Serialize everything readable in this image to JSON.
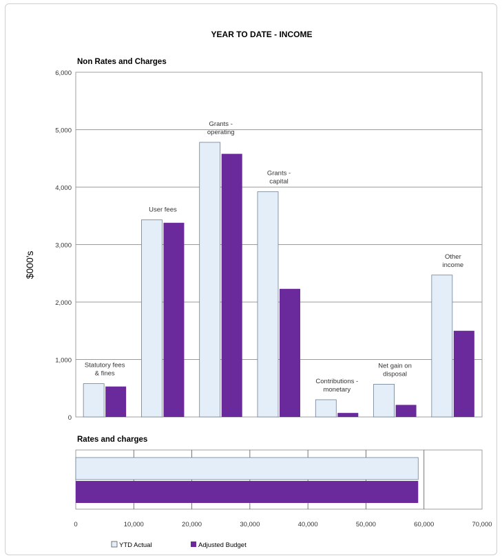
{
  "chart_data": [
    {
      "type": "bar",
      "title": "YEAR TO DATE - INCOME",
      "subtitle": "Non Rates and Charges",
      "ylabel": "$000's",
      "ylim": [
        0,
        6000
      ],
      "yticks": [
        "6,000",
        "5,000",
        "4,000",
        "3,000",
        "2,000",
        "1,000",
        "0"
      ],
      "categories": [
        "Statutory fees & fines",
        "User fees",
        "Grants - operating",
        "Grants - capital",
        "Contributions - monetary",
        "Net gain on disposal",
        "Other income"
      ],
      "series": [
        {
          "name": "YTD Actual",
          "values": [
            580,
            3430,
            4780,
            3920,
            300,
            570,
            2470
          ]
        },
        {
          "name": "Adjusted Budget",
          "values": [
            530,
            3380,
            4580,
            2230,
            70,
            210,
            1500
          ]
        }
      ],
      "grid": true
    },
    {
      "type": "bar",
      "orientation": "horizontal",
      "subtitle": "Rates and charges",
      "xlim": [
        0,
        70000
      ],
      "xticks": [
        "0",
        "10,000",
        "20,000",
        "30,000",
        "40,000",
        "50,000",
        "60,000",
        "70,000"
      ],
      "series": [
        {
          "name": "YTD Actual",
          "values": [
            59000
          ]
        },
        {
          "name": "Adjusted Budget",
          "values": [
            59000
          ]
        }
      ],
      "legend": "bottom"
    }
  ],
  "legend": [
    "YTD Actual",
    "Adjusted Budget"
  ],
  "colors": {
    "actual_fill": "#e4eef8",
    "actual_stroke": "#6e7e94",
    "budget": "#6a2a9c",
    "grid": "#9a9a9a"
  }
}
